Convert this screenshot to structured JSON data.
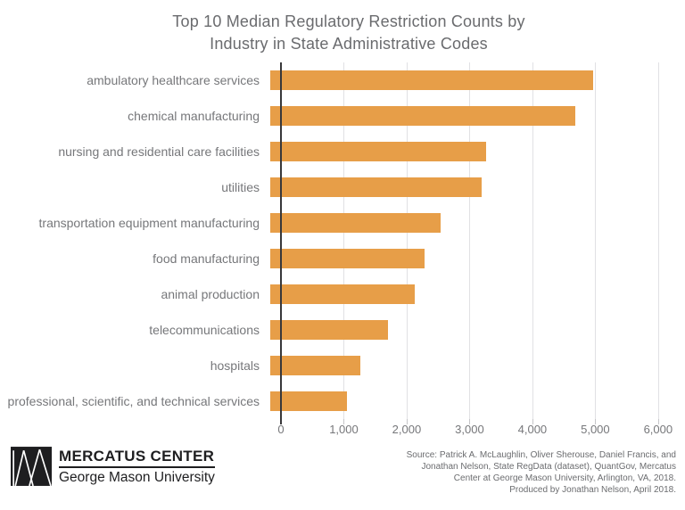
{
  "chart_data": {
    "type": "bar",
    "orientation": "horizontal",
    "title": "Top 10 Median Regulatory Restriction Counts by Industry in State Administrative Codes",
    "title_lines": [
      "Top 10 Median Regulatory Restriction Counts by",
      "Industry in State Administrative Codes"
    ],
    "categories": [
      "ambulatory healthcare services",
      "chemical manufacturing",
      "nursing and residential care facilities",
      "utilities",
      "transportation equipment manufacturing",
      "food manufacturing",
      "animal production",
      "telecommunications",
      "hospitals",
      "professional, scientific, and technical services"
    ],
    "values": [
      5140,
      4850,
      3430,
      3360,
      2710,
      2450,
      2300,
      1880,
      1440,
      1220
    ],
    "xlabel": "",
    "ylabel": "",
    "xlim": [
      0,
      6300
    ],
    "xticks": [
      0,
      1000,
      2000,
      3000,
      4000,
      5000,
      6000
    ],
    "xtick_labels": [
      "0",
      "1,000",
      "2,000",
      "3,000",
      "4,000",
      "5,000",
      "6,000"
    ],
    "grid": true,
    "legend": "none",
    "bar_color": "#E79E48"
  },
  "colors": {
    "bar": "#E79E48",
    "title_text": "#6A6B6E",
    "label_text": "#76777A",
    "gridline": "#E1E1E4",
    "axis_line": "#38383A",
    "logo_text": "#1E1E20",
    "source_text": "#6B6C6F"
  },
  "footer": {
    "logo": {
      "org": "MERCATUS CENTER",
      "sub": "George Mason University"
    },
    "source_lines": [
      "Source: Patrick A. McLaughlin, Oliver Sherouse, Daniel Francis, and",
      "Jonathan Nelson, State RegData (dataset), QuantGov, Mercatus",
      "Center at George Mason University, Arlington, VA, 2018.",
      "Produced by Jonathan Nelson, April 2018."
    ]
  }
}
